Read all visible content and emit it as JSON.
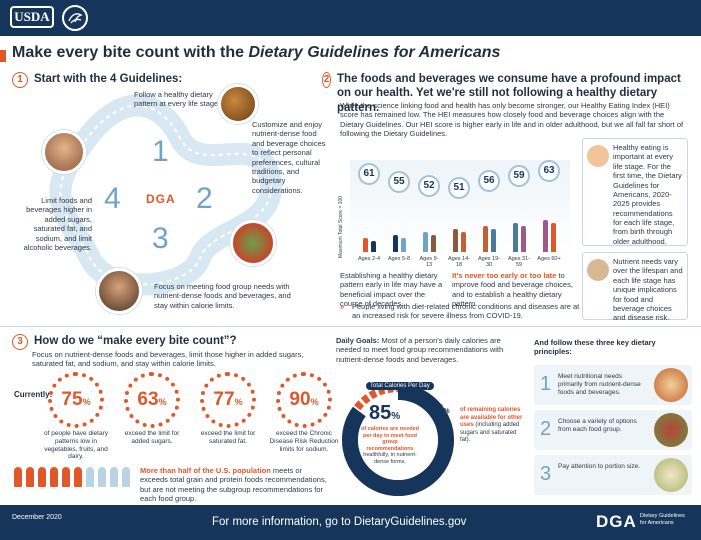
{
  "header": {
    "usda_logo": "USDA",
    "hhs_logo_icon": "hhs-eagle-icon"
  },
  "title": {
    "prefix": "Make every bite count with the ",
    "italic": "Dietary Guidelines for Americans"
  },
  "section1": {
    "number": "1",
    "title": "Start with the 4 Guidelines:",
    "g1": "Follow a healthy dietary pattern at every life stage.",
    "g2": "Customize and enjoy nutrient-dense food and beverage choices to reflect personal preferences, cultural traditions, and budgetary considerations.",
    "g3": "Focus on meeting food group needs with nutrient-dense foods and beverages, and stay within calorie limits.",
    "g4": "Limit foods and beverages higher in added sugars, saturated fat, and sodium, and limit alcoholic beverages.",
    "nums": [
      "1",
      "2",
      "3",
      "4"
    ],
    "center_logo": "DGA"
  },
  "section2": {
    "number": "2",
    "title": "The foods and beverages we consume have a profound impact on our health. Yet we're still not following a healthy dietary pattern.",
    "body": "While the science linking food and health has only become stronger, our Healthy Eating Index (HEI) score has remained low. The HEI measures how closely food and beverage choices align with the Dietary Guidelines. Our HEI score is higher early in life and in older adulthood, but we all fall far short of following the Dietary Guidelines.",
    "y_axis_label": "Maximum Total Score = 100",
    "note_left": "Establishing a healthy dietary pattern early in life may have a beneficial impact over the course of decades.",
    "note_right_bold": "It's never too early or too late",
    "note_right": " to improve food and beverage choices, and to establish a healthy dietary pattern.",
    "covid_note": "People living with diet-related chronic conditions and diseases are at an increased risk for severe illness from COVID-19.",
    "side1": "Healthy eating is important at every life stage. For the first time, the Dietary Guidelines for Americans, 2020-2025 provides recommendations for each life stage, from birth through older adulthood.",
    "side2": "Nutrient needs vary over the lifespan and each life stage has unique implications for food and beverage choices and disease risk."
  },
  "chart_data": {
    "type": "bar",
    "categories": [
      "Ages 2-4",
      "Ages 5-8",
      "Ages 9-13",
      "Ages 14-18",
      "Ages 19-30",
      "Ages 31-59",
      "Ages 60+"
    ],
    "values": [
      61,
      55,
      52,
      51,
      56,
      59,
      63
    ],
    "ylabel": "Maximum Total Score = 100",
    "ylim": [
      0,
      100
    ]
  },
  "section3": {
    "number": "3",
    "title": "How do we “make every bite count”?",
    "body": "Focus on nutrient-dense foods and beverages, limit those higher in added sugars, saturated fat, and sodium, and stay within calorie limits.",
    "currently": "Currently:",
    "stats": [
      {
        "value": "75",
        "unit": "%",
        "label": "of people have dietary patterns low in vegetables, fruits, and dairy."
      },
      {
        "value": "63",
        "unit": "%",
        "label": "exceed the limit for added sugars."
      },
      {
        "value": "77",
        "unit": "%",
        "label": "exceed the limit for saturated fat."
      },
      {
        "value": "90",
        "unit": "%",
        "label": "exceed the Chronic Disease Risk Reduction limits for sodium."
      }
    ],
    "people_note_bold": "More than half of the U.S. population",
    "people_note": " meets or exceeds total grain and protein foods recommendations, but are not meeting the subgroup recommendations for each food group.",
    "people_filled_fraction": 0.6,
    "daily_goals_bold": "Daily Goals:",
    "daily_goals": " Most of a person's daily calories are needed to meet food group recommendations with nutrient-dense foods and beverages.",
    "donut_title": "Total Calories Per Day",
    "donut_main": "85",
    "donut_main_unit": "%",
    "donut_main_label_bold": "of calories are needed per day to meet food group recommendations",
    "donut_main_label": " healthfully, in nutrient-dense forms.",
    "donut_rest": "15",
    "donut_rest_unit": "%",
    "donut_rest_label_bold": "of remaining calories are available for other uses",
    "donut_rest_label": " (including added sugars and saturated fat).",
    "principles_title": "And follow these three key dietary principles:",
    "principles": [
      {
        "n": "1",
        "t": "Meet nutritional needs primarily from nutrient-dense foods and beverages."
      },
      {
        "n": "2",
        "t": "Choose a variety of options from each food group."
      },
      {
        "n": "3",
        "t": "Pay attention to portion size."
      }
    ]
  },
  "footer": {
    "date": "December 2020",
    "more": "For more information, go to DietaryGuidelines.gov",
    "logo": "DGA",
    "logo_sub": "Dietary Guidelines for Americans"
  },
  "colors": {
    "navy": "#16355b",
    "orange": "#e0572a",
    "light_blue": "#6fa4c8"
  }
}
